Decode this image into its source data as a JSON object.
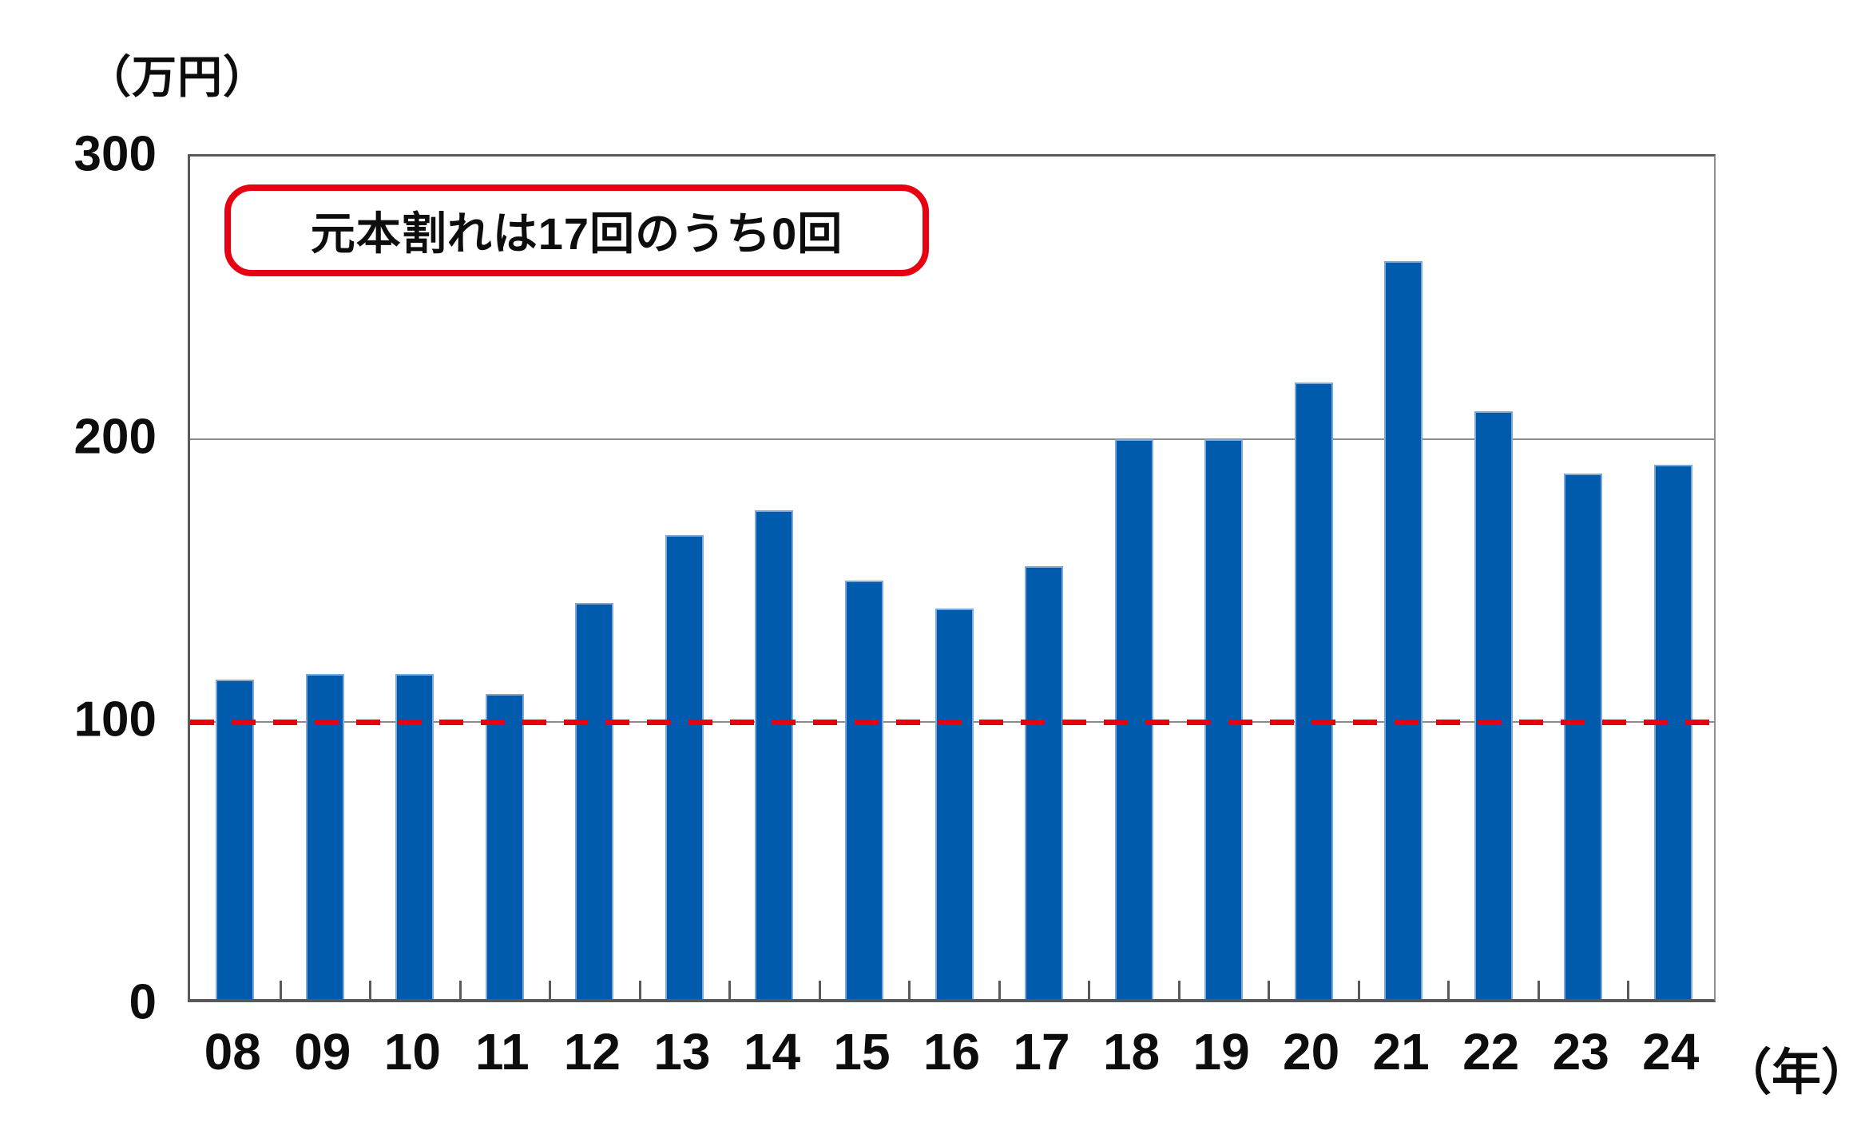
{
  "chart_data": {
    "type": "bar",
    "categories": [
      "08",
      "09",
      "10",
      "11",
      "12",
      "13",
      "14",
      "15",
      "16",
      "17",
      "18",
      "19",
      "20",
      "21",
      "22",
      "23",
      "24"
    ],
    "values": [
      113,
      115,
      115,
      108,
      140,
      164,
      173,
      148,
      138,
      153,
      198,
      198,
      218,
      261,
      208,
      186,
      189
    ],
    "title": "",
    "xlabel": "（年）",
    "ylabel": "（万円）",
    "ylim": [
      0,
      300
    ],
    "y_ticks": [
      0,
      100,
      200,
      300
    ],
    "gridline_values": [
      100,
      200
    ],
    "grid": true,
    "legend": "none",
    "bar_color": "#005bac",
    "bar_edge_color": "#7ca9da",
    "reference_line": {
      "value": 100,
      "style": "dashed",
      "color": "#e60012"
    },
    "annotation_text": "元本割れは17回のうち0回",
    "annotation_border_color": "#e60012"
  },
  "labels": {
    "y_unit": "（万円）",
    "x_unit": "（年）",
    "annotation": "元本割れは17回のうち0回"
  }
}
